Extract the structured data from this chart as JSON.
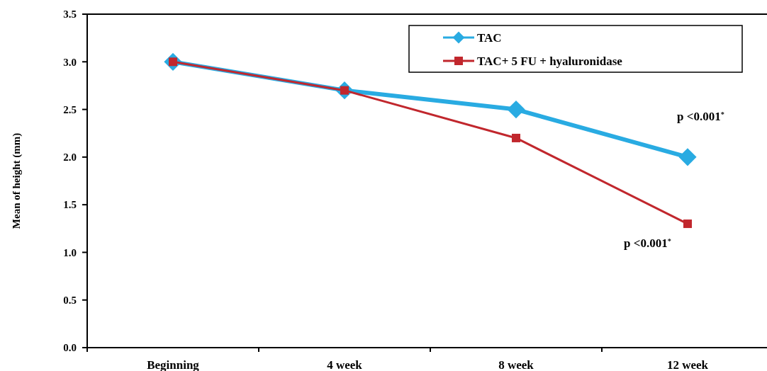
{
  "chart_data": {
    "type": "line",
    "ylabel": "Mean of height (mm)",
    "categories": [
      "Beginning",
      "4 week",
      "8 week",
      "12 week"
    ],
    "series": [
      {
        "name": "TAC",
        "color": "#29abe2",
        "marker": "diamond",
        "values": [
          3.0,
          2.7,
          2.5,
          2.0
        ]
      },
      {
        "name": "TAC+ 5 FU + hyaluronidase",
        "color": "#c1272d",
        "marker": "square",
        "values": [
          3.0,
          2.7,
          2.2,
          1.3
        ]
      }
    ],
    "ylim": [
      0,
      3.5
    ],
    "yticks": [
      {
        "value": 0,
        "label": "0.0"
      },
      {
        "value": 0.5,
        "label": "0.5"
      },
      {
        "value": 1,
        "label": "1.0"
      },
      {
        "value": 1.5,
        "label": "1.5"
      },
      {
        "value": 2,
        "label": "2.0"
      },
      {
        "value": 2.5,
        "label": "2.5"
      },
      {
        "value": 3,
        "label": "3.0"
      },
      {
        "value": 3.5,
        "label": "3.5"
      }
    ],
    "grid": false,
    "legend": "top right",
    "annotations": [
      "p <0.001$^{*}$",
      "p <0.001$^{*}$"
    ]
  }
}
